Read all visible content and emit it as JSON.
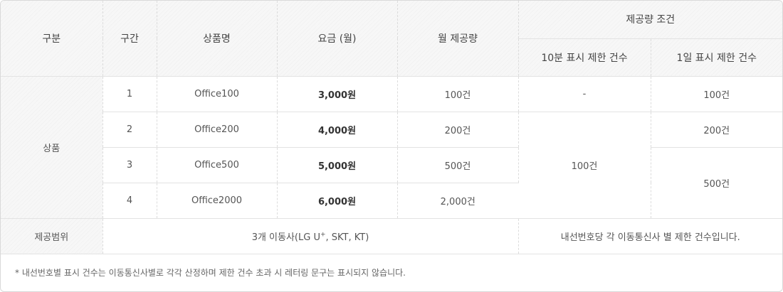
{
  "header": {
    "category": "구분",
    "tier": "구간",
    "product_name": "상품명",
    "fee": "요금 (월)",
    "monthly_quota": "월 제공량",
    "condition_group": "제공량 조건",
    "limit_10min": "10분 표시 제한 건수",
    "limit_1day": "1일 표시 제한 건수"
  },
  "rows_group_label": "상품",
  "rows": [
    {
      "tier": "1",
      "name": "Office100",
      "price": "3,000원",
      "quota": "100건",
      "limit_10min": "-",
      "limit_1day": "100건"
    },
    {
      "tier": "2",
      "name": "Office200",
      "price": "4,000원",
      "quota": "200건",
      "limit_1day": "200건"
    },
    {
      "tier": "3",
      "name": "Office500",
      "price": "5,000원",
      "quota": "500건"
    },
    {
      "tier": "4",
      "name": "Office2000",
      "price": "6,000원",
      "quota": "2,000건"
    }
  ],
  "merged": {
    "limit_10min_rows_2_4": "100건",
    "limit_1day_rows_3_4": "500건"
  },
  "scope": {
    "label": "제공범위",
    "carriers_prefix": "3개 이동사(LG U",
    "carriers_sup": "+",
    "carriers_suffix": ", SKT, KT)",
    "note": "내선번호당 각 이동통신사 별 제한 건수입니다."
  },
  "footnote": "* 내선번호별 표시 건수는 이동통신사별로 각각 산정하며 제한 건수 초과 시 레터링 문구는 표시되지 않습니다."
}
